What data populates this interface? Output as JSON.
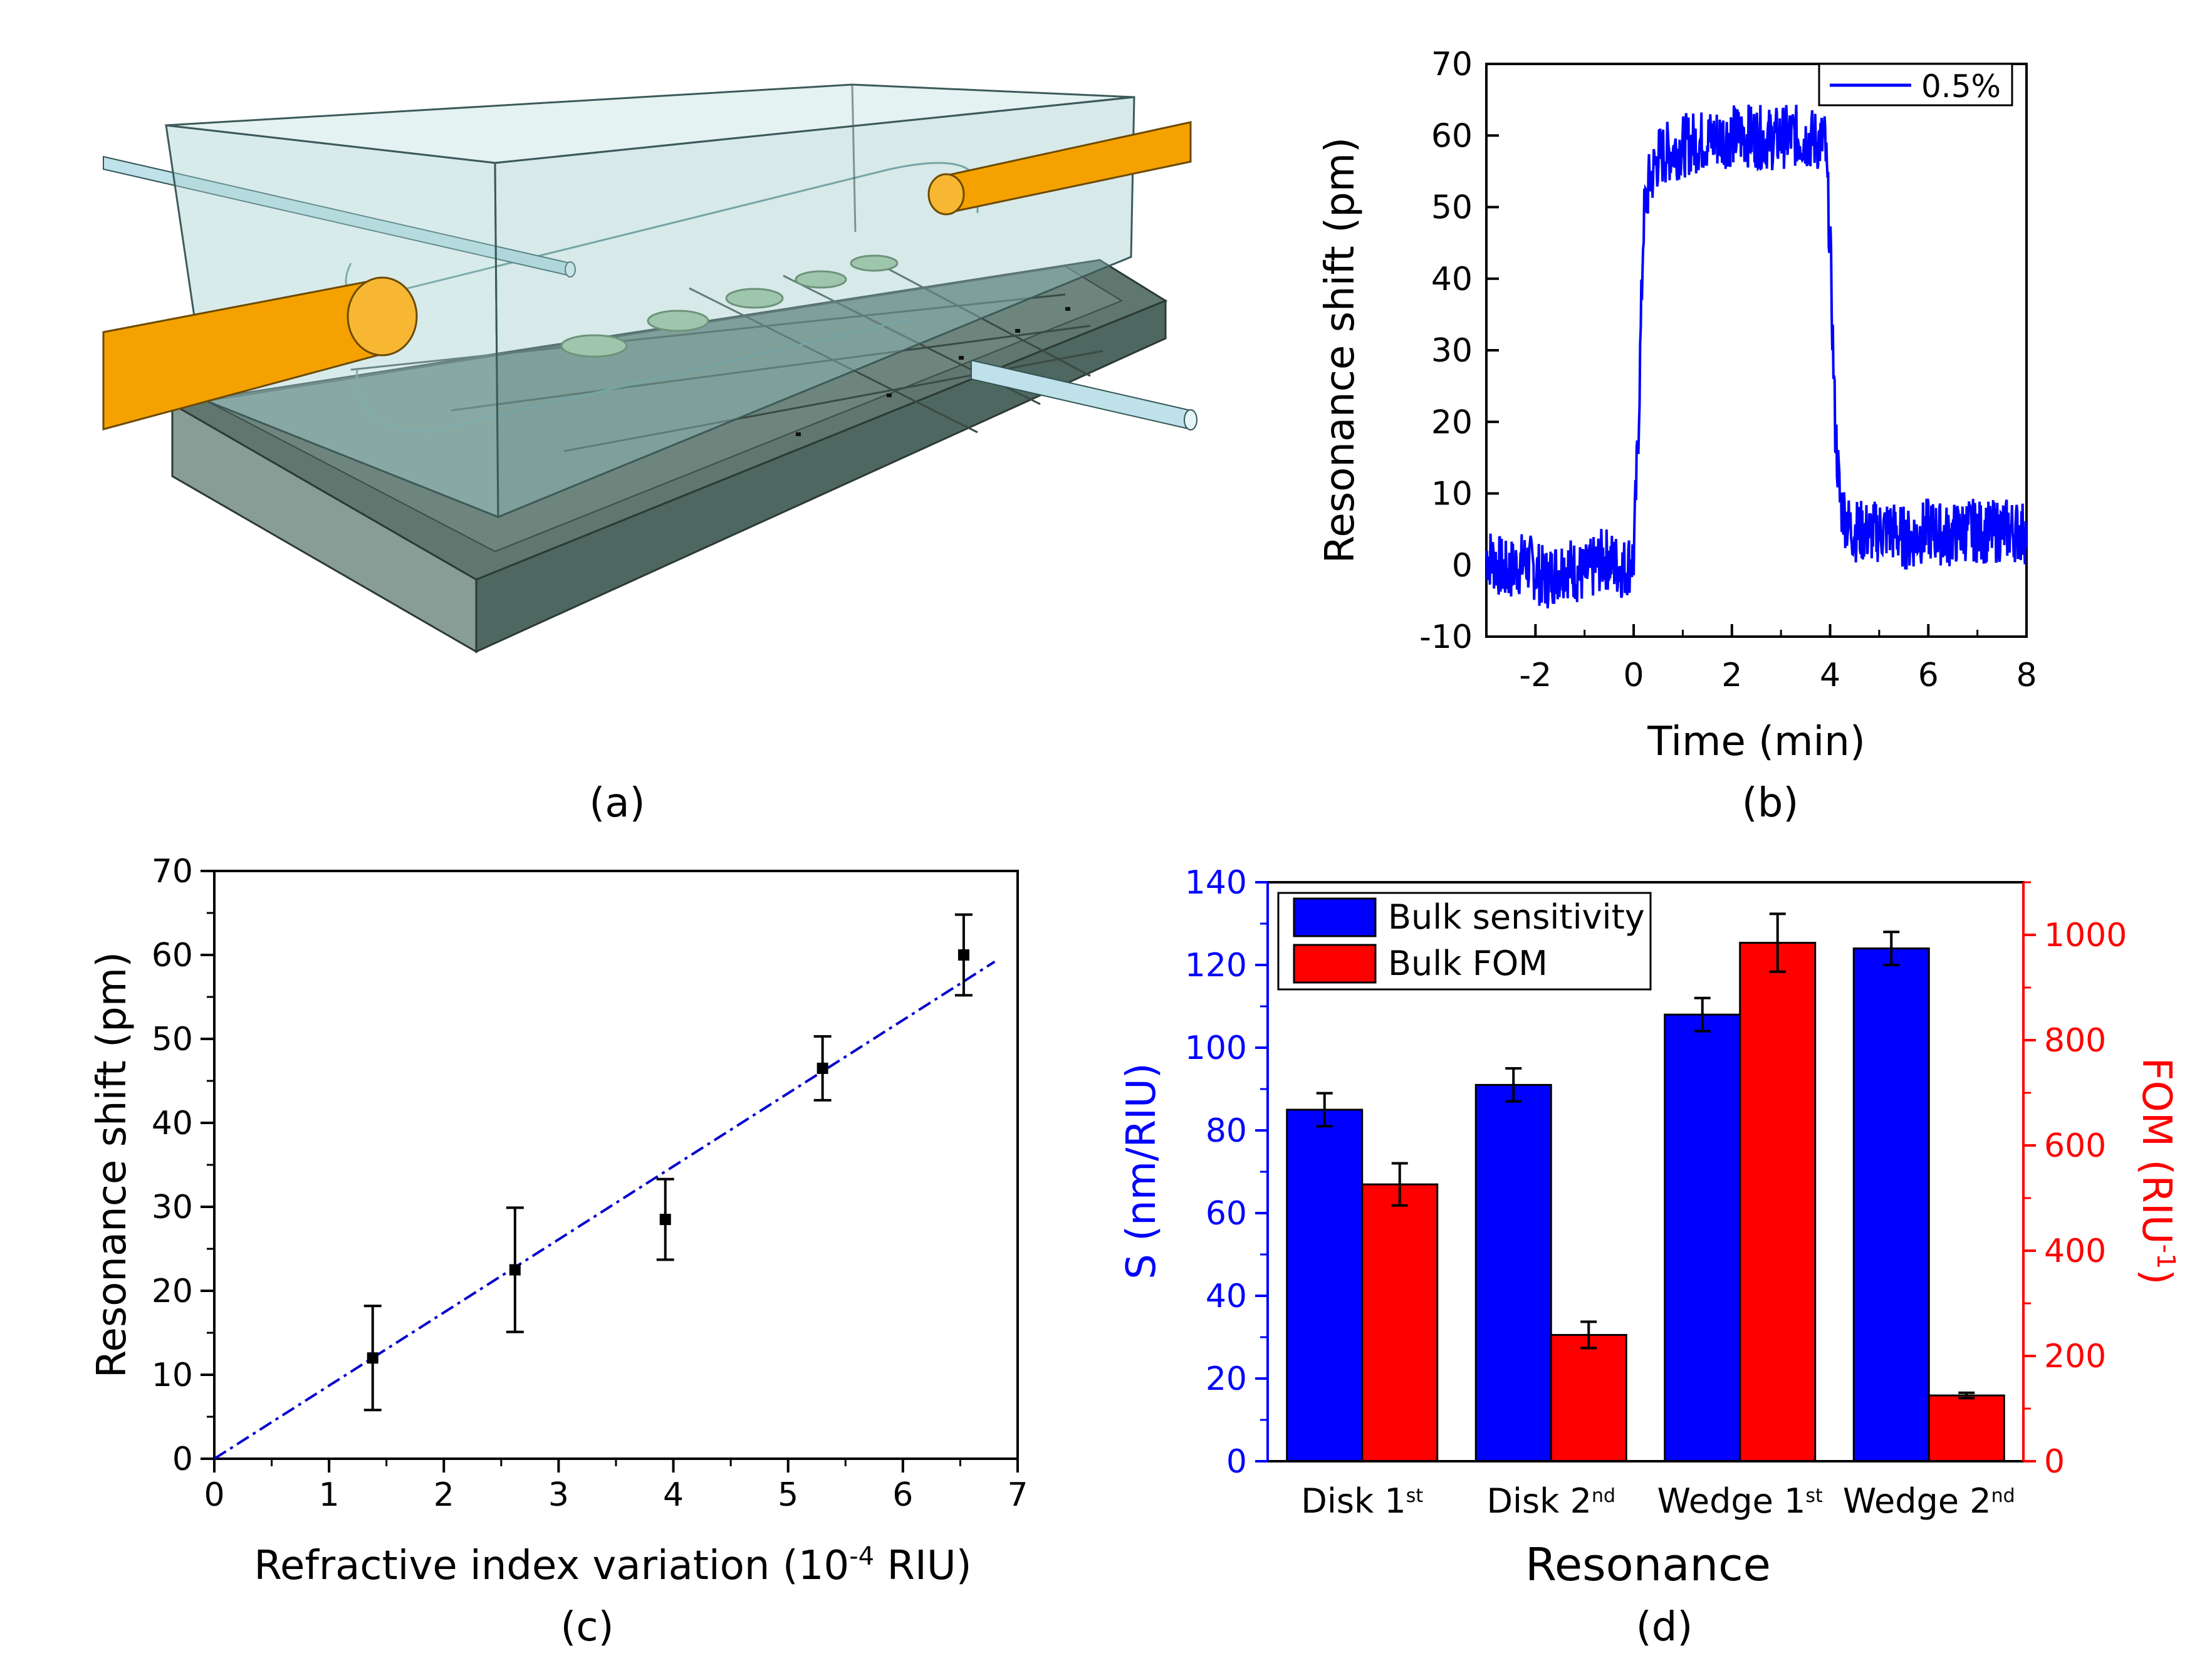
{
  "panels": {
    "a": {
      "caption": "(a)"
    },
    "b": {
      "caption": "(b)"
    },
    "c": {
      "caption": "(c)"
    },
    "d": {
      "caption": "(d)"
    }
  },
  "colors": {
    "blue": "#0000ff",
    "red": "#ff0000",
    "black": "#000000",
    "fitline": "#0000cc",
    "fiber": "#f5a100",
    "chip": "#5f776e",
    "pdms": "#a9d2d2",
    "disk": "#9fc59a"
  },
  "chart_data": [
    {
      "panel": "b",
      "type": "line",
      "xlabel": "Time (min)",
      "ylabel": "Resonance shift (pm)",
      "xlim": [
        -3,
        8
      ],
      "ylim": [
        -10,
        70
      ],
      "xticks": [
        "-2",
        "0",
        "2",
        "4",
        "6",
        "8"
      ],
      "xtick_values": [
        -2,
        0,
        2,
        4,
        6,
        8
      ],
      "yticks": [
        "-10",
        "0",
        "10",
        "20",
        "30",
        "40",
        "50",
        "60",
        "70"
      ],
      "ytick_values": [
        -10,
        0,
        10,
        20,
        30,
        40,
        50,
        60,
        70
      ],
      "legend": [
        "0.5%"
      ],
      "series": [
        {
          "name": "0.5%",
          "x": [
            -3.0,
            -2.6,
            -2.2,
            -1.8,
            -1.4,
            -1.0,
            -0.6,
            -0.2,
            0.0,
            0.1,
            0.2,
            0.3,
            0.5,
            0.8,
            1.2,
            1.6,
            2.0,
            2.4,
            2.8,
            3.2,
            3.6,
            3.9,
            4.0,
            4.1,
            4.2,
            4.4,
            4.8,
            5.2,
            5.6,
            6.0,
            6.4,
            6.8,
            7.2,
            7.6,
            8.0
          ],
          "y": [
            1.5,
            -1.0,
            0.5,
            -2.0,
            0.0,
            -1.5,
            1.0,
            -0.5,
            1.0,
            20.0,
            48.0,
            53.0,
            57.0,
            58.0,
            59.0,
            59.5,
            60.0,
            60.0,
            59.5,
            60.0,
            59.5,
            59.0,
            45.0,
            20.0,
            9.0,
            5.0,
            4.5,
            5.0,
            3.5,
            5.0,
            4.0,
            5.0,
            4.5,
            5.0,
            4.5
          ]
        }
      ]
    },
    {
      "panel": "c",
      "type": "scatter",
      "xlabel_pre": "Refractive index variation (10",
      "xlabel_sup": "-4",
      "xlabel_post": " RIU)",
      "ylabel": "Resonance shift (pm)",
      "xlim": [
        0,
        7
      ],
      "ylim": [
        0,
        70
      ],
      "xticks": [
        "0",
        "1",
        "2",
        "3",
        "4",
        "5",
        "6",
        "7"
      ],
      "xtick_values": [
        0,
        1,
        2,
        3,
        4,
        5,
        6,
        7
      ],
      "yticks": [
        "0",
        "10",
        "20",
        "30",
        "40",
        "50",
        "60",
        "70"
      ],
      "ytick_values": [
        0,
        10,
        20,
        30,
        40,
        50,
        60,
        70
      ],
      "points": [
        {
          "x": 1.38,
          "y": 12.0,
          "err": 6.2
        },
        {
          "x": 2.62,
          "y": 22.5,
          "err": 7.4
        },
        {
          "x": 3.93,
          "y": 28.5,
          "err": 4.8
        },
        {
          "x": 5.3,
          "y": 46.5,
          "err": 3.8
        },
        {
          "x": 6.53,
          "y": 60.0,
          "err": 4.8
        }
      ],
      "fit": {
        "x": [
          0,
          6.8
        ],
        "y": [
          0,
          59.2
        ]
      }
    },
    {
      "panel": "d",
      "type": "bar",
      "xlabel": "Resonance",
      "ylabel_left": "S (nm/RIU)",
      "ylabel_right_pre": "FOM (RIU",
      "ylabel_right_sup": "-1",
      "ylabel_right_post": ")",
      "ylim_left": [
        0,
        140
      ],
      "ylim_right": [
        0,
        1100
      ],
      "yticks_left": [
        "0",
        "20",
        "40",
        "60",
        "80",
        "100",
        "120",
        "140"
      ],
      "ytick_values_left": [
        0,
        20,
        40,
        60,
        80,
        100,
        120,
        140
      ],
      "yticks_right": [
        "0",
        "200",
        "400",
        "600",
        "800",
        "1000"
      ],
      "ytick_values_right": [
        0,
        200,
        400,
        600,
        800,
        1000
      ],
      "categories": [
        {
          "main": "Disk  1",
          "sup": "st"
        },
        {
          "main": "Disk 2",
          "sup": "nd"
        },
        {
          "main": "Wedge 1",
          "sup": "st"
        },
        {
          "main": "Wedge 2",
          "sup": "nd"
        }
      ],
      "series": [
        {
          "name": "Bulk sensitivity",
          "axis": "left",
          "values": [
            85,
            91,
            108,
            124
          ],
          "errors": [
            4,
            4,
            4,
            4
          ]
        },
        {
          "name": "Bulk FOM",
          "axis": "right",
          "values": [
            526,
            240,
            985,
            125
          ],
          "errors": [
            40,
            25,
            55,
            5
          ]
        }
      ]
    }
  ]
}
